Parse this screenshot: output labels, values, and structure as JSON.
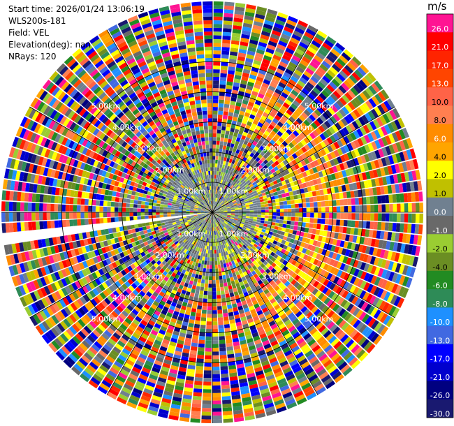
{
  "info": {
    "start_time": "Start time: 2026/01/24 13:06:19",
    "site": "WLS200s-181",
    "field": "Field: VEL",
    "elevation": "Elevation(deg): nan",
    "nrays": "NRays: 120"
  },
  "colorbar": {
    "unit": "m/s",
    "ticks": [
      "26.0",
      "21.0",
      "17.0",
      "13.0",
      "10.0",
      "8.0",
      "6.0",
      "4.0",
      "2.0",
      "1.0",
      "0.0",
      "-1.0",
      "-2.0",
      "-4.0",
      "-6.0",
      "-8.0",
      "-10.0",
      "-13.0",
      "-17.0",
      "-21.0",
      "-26.0",
      "-30.0"
    ],
    "colors": [
      "#ff1493",
      "#ff0000",
      "#ff2400",
      "#ff4500",
      "#ff6347",
      "#ff7f50",
      "#ff8c00",
      "#ffa500",
      "#ffff00",
      "#c0c000",
      "#708090",
      "#696969",
      "#9acd32",
      "#6b8e23",
      "#228b22",
      "#2e8b57",
      "#1e90ff",
      "#4169e1",
      "#0000ff",
      "#0000cd",
      "#000080",
      "#191970"
    ]
  },
  "chart_data": {
    "type": "heatmap",
    "projection": "polar (PPI)",
    "field": "VEL",
    "unit": "m/s",
    "nrays": 120,
    "range_rings_km": [
      1,
      2,
      3,
      4,
      5
    ],
    "range_ring_labels": [
      "1.00km",
      "2.00km",
      "3.00km",
      "4.00km",
      "5.00km"
    ],
    "max_range_km": 7,
    "radial_lines_deg": [
      0,
      30,
      60,
      90,
      120,
      150,
      180,
      210,
      240,
      270,
      300,
      330
    ],
    "color_levels": [
      -30,
      -26,
      -21,
      -17,
      -13,
      -10,
      -8,
      -6,
      -4,
      -2,
      -1,
      0,
      1,
      2,
      4,
      6,
      8,
      10,
      13,
      17,
      21,
      26,
      30
    ],
    "notes": "Near range (<1.5km) dominated by 0.0 to -2.0 m/s (gray/yellow-green); eastern sector at 3-4km shows +2 to +6 m/s (yellow/orange); outer ranges noisy across full scale."
  }
}
